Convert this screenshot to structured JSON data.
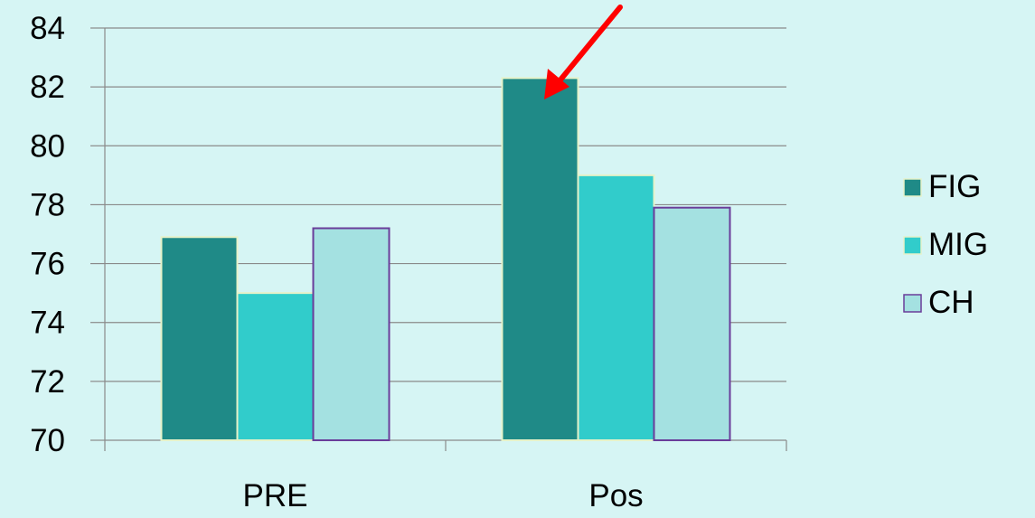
{
  "chart_data": {
    "type": "bar",
    "title": "",
    "xlabel": "",
    "ylabel": "",
    "categories": [
      "PRE",
      "Pos"
    ],
    "series": [
      {
        "name": "FIG",
        "values": [
          76.9,
          82.3
        ],
        "color": "#1f8a87",
        "border": "#e6f2c9"
      },
      {
        "name": "MIG",
        "values": [
          75.0,
          79.0
        ],
        "color": "#31cccb",
        "border": "#e6f2c9"
      },
      {
        "name": "CH",
        "values": [
          77.2,
          77.9
        ],
        "color": "#a4e1e1",
        "border": "#6a3d9a"
      }
    ],
    "ylim": [
      70,
      84
    ],
    "yticks": [
      70,
      72,
      74,
      76,
      78,
      80,
      82,
      84
    ],
    "grid": true,
    "legend_position": "right",
    "annotation": {
      "type": "arrow",
      "color": "#ff0000",
      "points_to": "FIG bar in Pos"
    },
    "background": "#d6f5f4",
    "gridline_color": "#8a8a8a"
  }
}
